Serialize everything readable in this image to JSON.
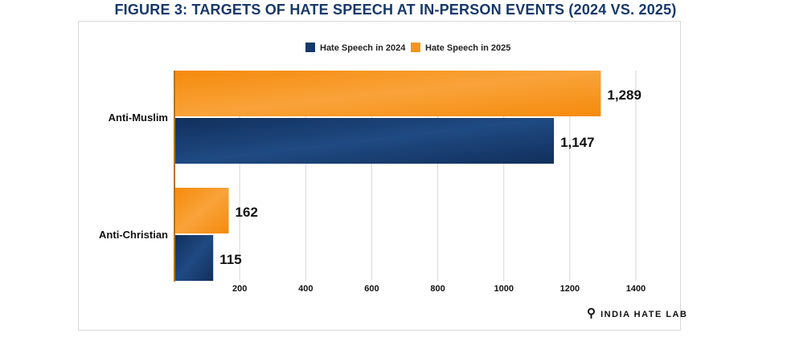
{
  "chart_data": {
    "type": "bar",
    "orientation": "horizontal",
    "title": "FIGURE 3: TARGETS OF HATE SPEECH AT IN-PERSON EVENTS (2024 VS. 2025)",
    "categories": [
      "Anti-Muslim",
      "Anti-Christian"
    ],
    "series": [
      {
        "name": "Hate Speech in 2025",
        "values": [
          1289,
          162
        ],
        "color": "#f7941d",
        "labels": [
          "1,289",
          "162"
        ]
      },
      {
        "name": "Hate Speech in 2024",
        "values": [
          1147,
          115
        ],
        "color": "#15396a",
        "labels": [
          "1,147",
          "115"
        ]
      }
    ],
    "legend": [
      "Hate Speech in 2024",
      "Hate Speech in 2025"
    ],
    "legend_placement": "top",
    "xlim": [
      0,
      1400
    ],
    "xticks": [
      200,
      400,
      600,
      800,
      1000,
      1200,
      1400
    ],
    "grid": true,
    "xlabel": "",
    "ylabel": ""
  },
  "logo": "INDIA HATE LAB"
}
